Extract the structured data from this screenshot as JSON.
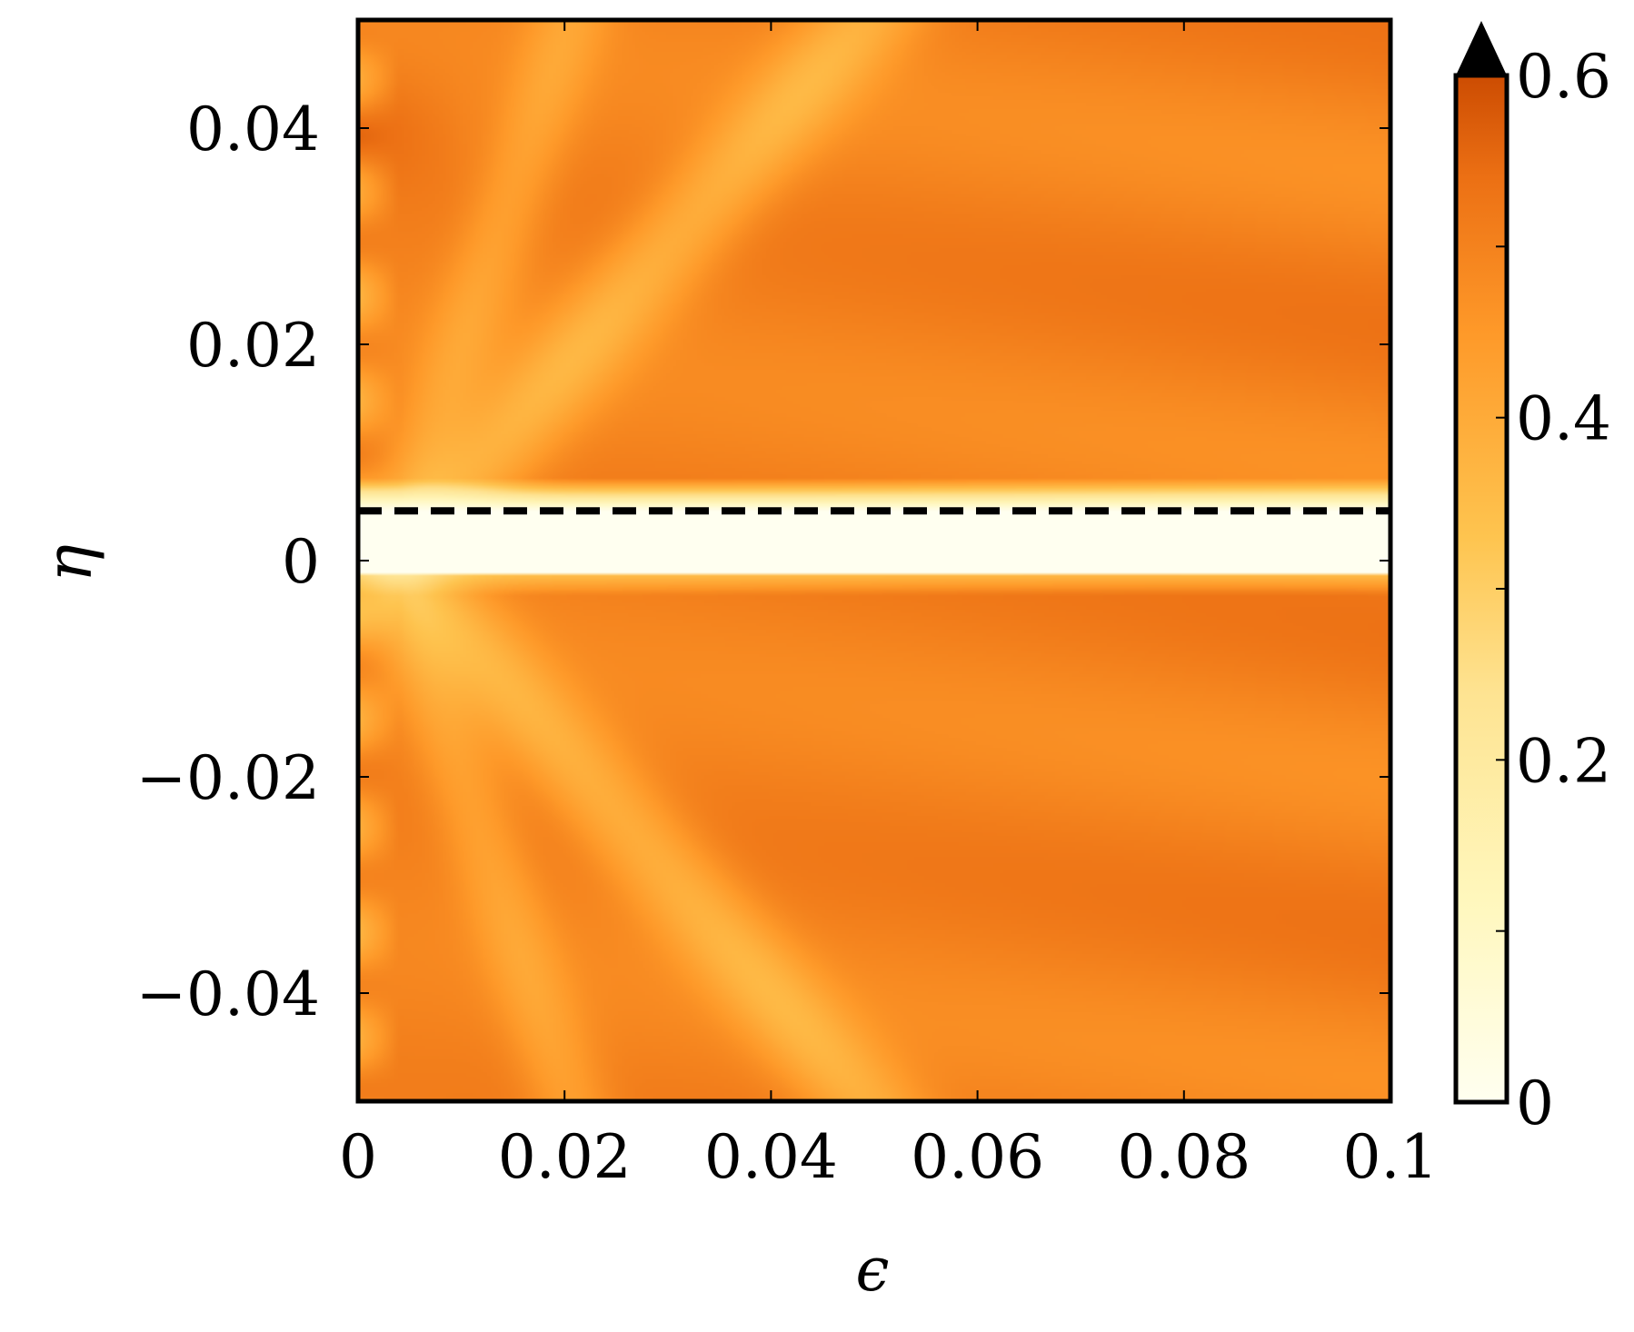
{
  "chart_data": {
    "type": "heatmap",
    "xlabel": "ϵ",
    "ylabel": "η",
    "xlim": [
      0,
      0.1
    ],
    "ylim": [
      -0.05,
      0.05
    ],
    "x_ticks": [
      {
        "value": 0,
        "label": "0"
      },
      {
        "value": 0.02,
        "label": "0.02"
      },
      {
        "value": 0.04,
        "label": "0.04"
      },
      {
        "value": 0.06,
        "label": "0.06"
      },
      {
        "value": 0.08,
        "label": "0.08"
      },
      {
        "value": 0.1,
        "label": "0.1"
      }
    ],
    "y_ticks": [
      {
        "value": -0.04,
        "label": "−0.04"
      },
      {
        "value": -0.02,
        "label": "−0.02"
      },
      {
        "value": 0,
        "label": "0"
      },
      {
        "value": 0.02,
        "label": "0.02"
      },
      {
        "value": 0.04,
        "label": "0.04"
      }
    ],
    "colorbar": {
      "range": [
        0,
        0.6
      ],
      "extend": "max",
      "colormap": "YlOrBr",
      "ticks": [
        {
          "value": 0,
          "label": "0"
        },
        {
          "value": 0.2,
          "label": "0.2"
        },
        {
          "value": 0.4,
          "label": "0.4"
        },
        {
          "value": 0.6,
          "label": "0.6"
        }
      ],
      "minor_ticks": [
        0.1,
        0.3,
        0.5
      ]
    },
    "dashed_line": {
      "orientation": "horizontal",
      "eta": 0.0046
    },
    "features": {
      "low_band": {
        "eta_min": -0.0012,
        "eta_max": 0.0046,
        "value": 0.0
      },
      "typical_value": 0.5,
      "max_value": 0.58
    }
  }
}
